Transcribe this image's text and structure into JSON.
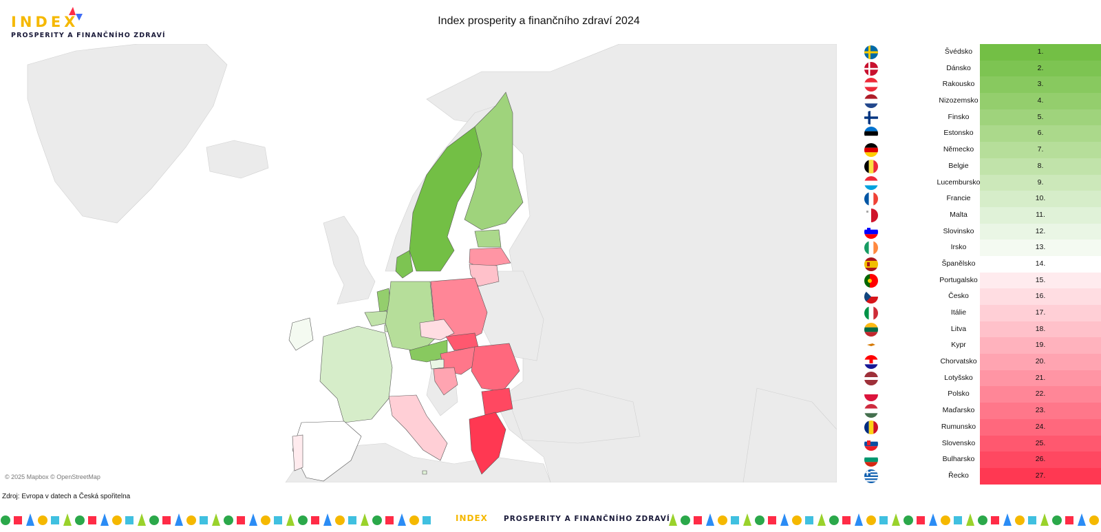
{
  "logo": {
    "word": "INDEX",
    "subtitle": "PROSPERITY A FINANČNÍHO ZDRAVÍ"
  },
  "title": "Index prosperity a finančního zdraví 2024",
  "map": {
    "attribution": "© 2025 Mapbox © OpenStreetMap",
    "basemap_colors": {
      "land": "#ebebeb",
      "water": "#ffffff",
      "borders": "#c9c9c9"
    }
  },
  "source": "Zdroj: Evropa v datech a Česká spořitelna",
  "color_scale": {
    "best": "#73bf45",
    "middle": "#ffffff",
    "worst": "#ff2b46"
  },
  "ranking": [
    {
      "country": "Švédsko",
      "rank": "1.",
      "color": "#73bf45",
      "flag": "se"
    },
    {
      "country": "Dánsko",
      "rank": "2.",
      "color": "#7dc452",
      "flag": "dk"
    },
    {
      "country": "Rakousko",
      "rank": "3.",
      "color": "#88c95f",
      "flag": "at"
    },
    {
      "country": "Nizozemsko",
      "rank": "4.",
      "color": "#94ce6d",
      "flag": "nl"
    },
    {
      "country": "Finsko",
      "rank": "5.",
      "color": "#9fd37c",
      "flag": "fi"
    },
    {
      "country": "Estonsko",
      "rank": "6.",
      "color": "#abd98b",
      "flag": "ee"
    },
    {
      "country": "Německo",
      "rank": "7.",
      "color": "#b6de9a",
      "flag": "de"
    },
    {
      "country": "Belgie",
      "rank": "8.",
      "color": "#c1e3aa",
      "flag": "be"
    },
    {
      "country": "Lucembursko",
      "rank": "9.",
      "color": "#cce8ba",
      "flag": "lu"
    },
    {
      "country": "Francie",
      "rank": "10.",
      "color": "#d6edc9",
      "flag": "fr"
    },
    {
      "country": "Malta",
      "rank": "11.",
      "color": "#e0f2d8",
      "flag": "mt"
    },
    {
      "country": "Slovinsko",
      "rank": "12.",
      "color": "#eaf6e5",
      "flag": "si"
    },
    {
      "country": "Irsko",
      "rank": "13.",
      "color": "#f4faf1",
      "flag": "ie"
    },
    {
      "country": "Španělsko",
      "rank": "14.",
      "color": "#ffffff",
      "flag": "es"
    },
    {
      "country": "Portugalsko",
      "rank": "15.",
      "color": "#ffebee",
      "flag": "pt"
    },
    {
      "country": "Česko",
      "rank": "16.",
      "color": "#ffdde2",
      "flag": "cz"
    },
    {
      "country": "Itálie",
      "rank": "17.",
      "color": "#ffcfd6",
      "flag": "it"
    },
    {
      "country": "Litva",
      "rank": "18.",
      "color": "#ffc1ca",
      "flag": "lt"
    },
    {
      "country": "Kypr",
      "rank": "19.",
      "color": "#ffb2bd",
      "flag": "cy"
    },
    {
      "country": "Chorvatsko",
      "rank": "20.",
      "color": "#ffa4b1",
      "flag": "hr"
    },
    {
      "country": "Lotyšsko",
      "rank": "21.",
      "color": "#ff95a4",
      "flag": "lv"
    },
    {
      "country": "Polsko",
      "rank": "22.",
      "color": "#ff8697",
      "flag": "pl"
    },
    {
      "country": "Maďarsko",
      "rank": "23.",
      "color": "#ff778a",
      "flag": "hu"
    },
    {
      "country": "Rumunsko",
      "rank": "24.",
      "color": "#ff687d",
      "flag": "ro"
    },
    {
      "country": "Slovensko",
      "rank": "25.",
      "color": "#ff586f",
      "flag": "sk"
    },
    {
      "country": "Bulharsko",
      "rank": "26.",
      "color": "#ff4861",
      "flag": "bg"
    },
    {
      "country": "Řecko",
      "rank": "27.",
      "color": "#ff3852",
      "flag": "gr"
    }
  ],
  "footer": {
    "word": "INDEX",
    "subtitle": "PROSPERITY A FINANČNÍHO ZDRAVÍ"
  }
}
